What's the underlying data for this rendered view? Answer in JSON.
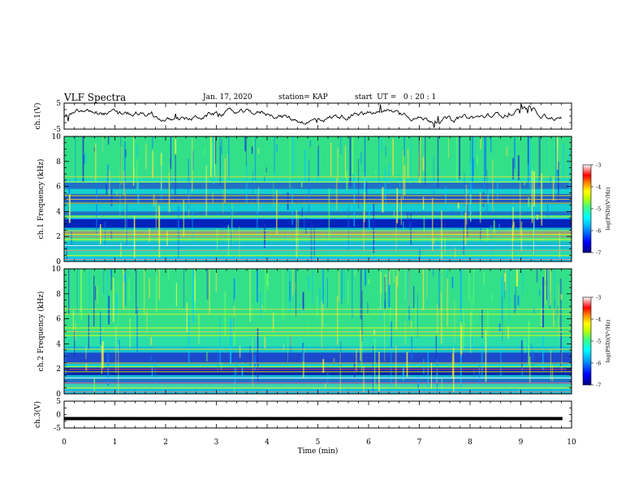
{
  "header": {
    "title": "VLF Spectra",
    "date": "Jan. 17, 2020",
    "station": "station= KAP",
    "start": "start  UT =   0 : 20 : 1"
  },
  "colors": {
    "spectrogram_base": "#33e08a",
    "band_blue": "#1a2fd6",
    "band_yellow": "#e8e040",
    "colormap": [
      "#000080",
      "#0000ff",
      "#00a0ff",
      "#00ffff",
      "#40ff80",
      "#c0ff00",
      "#ffff00",
      "#ff8000",
      "#ff0000",
      "#ff8080",
      "#ffffff"
    ]
  },
  "chart_data": [
    {
      "type": "line",
      "ylabel": "ch.1(V)",
      "ylim": [
        -5,
        5
      ],
      "yticks": [
        "5",
        "-5"
      ],
      "xlim": [
        0,
        10
      ],
      "description_values": "noisy waveform around 0 V oscillating roughly between -3 and 3 V"
    },
    {
      "type": "heatmap",
      "ylabel": "ch.1 Frequency (kHz)",
      "ylim": [
        0,
        10
      ],
      "yticks": [
        "0",
        "2",
        "4",
        "6",
        "8",
        "10"
      ],
      "colorbar": {
        "label": "log(PSD)(V²/Hz)",
        "range": [
          -7,
          -3
        ],
        "ticks": [
          "-3",
          "-4",
          "-5",
          "-6",
          "-7"
        ]
      }
    },
    {
      "type": "heatmap",
      "ylabel": "ch.2 Frequency (kHz)",
      "ylim": [
        0,
        10
      ],
      "yticks": [
        "0",
        "2",
        "4",
        "6",
        "8",
        "10"
      ],
      "colorbar": {
        "label": "log(PSD)(V²/Hz)",
        "range": [
          -7,
          -3
        ],
        "ticks": [
          "-3",
          "-4",
          "-5",
          "-6",
          "-7"
        ]
      }
    },
    {
      "type": "line",
      "ylabel": "ch.3(V)",
      "ylim": [
        -5,
        5
      ],
      "yticks": [
        "5",
        "0",
        "-5"
      ],
      "constant_value": -1.5
    }
  ],
  "xaxis": {
    "label": "Time  (min)",
    "ticks": [
      "0",
      "1",
      "2",
      "3",
      "4",
      "5",
      "6",
      "7",
      "8",
      "9",
      "10"
    ]
  }
}
